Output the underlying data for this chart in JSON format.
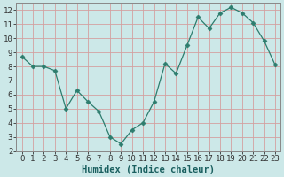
{
  "x": [
    0,
    1,
    2,
    3,
    4,
    5,
    6,
    7,
    8,
    9,
    10,
    11,
    12,
    13,
    14,
    15,
    16,
    17,
    18,
    19,
    20,
    21,
    22,
    23
  ],
  "y": [
    8.7,
    8.0,
    8.0,
    7.7,
    5.0,
    6.3,
    5.5,
    4.8,
    3.0,
    2.5,
    3.5,
    4.0,
    5.5,
    8.2,
    7.5,
    9.5,
    11.5,
    10.7,
    11.8,
    12.2,
    11.8,
    11.1,
    9.8,
    8.1
  ],
  "xlabel": "Humidex (Indice chaleur)",
  "xlim": [
    -0.5,
    23.5
  ],
  "ylim": [
    2,
    12.5
  ],
  "xticks": [
    0,
    1,
    2,
    3,
    4,
    5,
    6,
    7,
    8,
    9,
    10,
    11,
    12,
    13,
    14,
    15,
    16,
    17,
    18,
    19,
    20,
    21,
    22,
    23
  ],
  "yticks": [
    2,
    3,
    4,
    5,
    6,
    7,
    8,
    9,
    10,
    11,
    12
  ],
  "line_color": "#2d7d6e",
  "marker": "D",
  "marker_size": 2.5,
  "bg_color": "#cce8e8",
  "grid_color_major": "#d4a0a0",
  "grid_color_minor": "#d4a0a0",
  "xlabel_fontsize": 7.5,
  "tick_fontsize": 6.5
}
